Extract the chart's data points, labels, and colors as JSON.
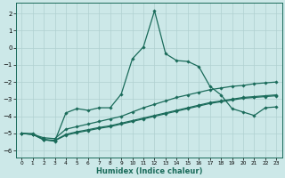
{
  "xlabel": "Humidex (Indice chaleur)",
  "background_color": "#cce8e8",
  "grid_color": "#b0d0d0",
  "line_color": "#1a6b5a",
  "xlim": [
    -0.5,
    23.5
  ],
  "ylim": [
    -6.4,
    2.6
  ],
  "yticks": [
    -6,
    -5,
    -4,
    -3,
    -2,
    -1,
    0,
    1,
    2
  ],
  "xticks": [
    0,
    1,
    2,
    3,
    4,
    5,
    6,
    7,
    8,
    9,
    10,
    11,
    12,
    13,
    14,
    15,
    16,
    17,
    18,
    19,
    20,
    21,
    22,
    23
  ],
  "line1_x": [
    0,
    1,
    2,
    3,
    4,
    5,
    6,
    7,
    8,
    9,
    10,
    11,
    12,
    13,
    14,
    15,
    16,
    17,
    18,
    19,
    20,
    21,
    22,
    23
  ],
  "line1_y": [
    -5.0,
    -5.0,
    -5.35,
    -5.45,
    -3.8,
    -3.55,
    -3.65,
    -3.5,
    -3.5,
    -2.7,
    -0.65,
    0.05,
    2.15,
    -0.35,
    -0.75,
    -0.8,
    -1.1,
    -2.25,
    -2.75,
    -3.55,
    -3.75,
    -3.95,
    -3.5,
    -3.45
  ],
  "line2_x": [
    0,
    1,
    2,
    3,
    4,
    5,
    6,
    7,
    8,
    9,
    10,
    11,
    12,
    13,
    14,
    15,
    16,
    17,
    18,
    19,
    20,
    21,
    22,
    23
  ],
  "line2_y": [
    -5.0,
    -5.05,
    -5.25,
    -5.3,
    -4.75,
    -4.6,
    -4.45,
    -4.3,
    -4.15,
    -4.0,
    -3.75,
    -3.5,
    -3.3,
    -3.1,
    -2.9,
    -2.75,
    -2.6,
    -2.45,
    -2.35,
    -2.25,
    -2.2,
    -2.1,
    -2.05,
    -2.0
  ],
  "line3_x": [
    0,
    1,
    2,
    3,
    4,
    5,
    6,
    7,
    8,
    9,
    10,
    11,
    12,
    13,
    14,
    15,
    16,
    17,
    18,
    19,
    20,
    21,
    22,
    23
  ],
  "line3_y": [
    -5.0,
    -5.05,
    -5.35,
    -5.4,
    -5.05,
    -4.9,
    -4.78,
    -4.65,
    -4.55,
    -4.4,
    -4.25,
    -4.1,
    -3.95,
    -3.8,
    -3.65,
    -3.5,
    -3.35,
    -3.2,
    -3.1,
    -3.0,
    -2.9,
    -2.85,
    -2.8,
    -2.75
  ],
  "line4_x": [
    0,
    1,
    2,
    3,
    4,
    5,
    6,
    7,
    8,
    9,
    10,
    11,
    12,
    13,
    14,
    15,
    16,
    17,
    18,
    19,
    20,
    21,
    22,
    23
  ],
  "line4_y": [
    -5.0,
    -5.05,
    -5.38,
    -5.42,
    -5.1,
    -4.95,
    -4.83,
    -4.7,
    -4.6,
    -4.45,
    -4.3,
    -4.15,
    -4.0,
    -3.85,
    -3.7,
    -3.55,
    -3.4,
    -3.25,
    -3.15,
    -3.05,
    -2.95,
    -2.9,
    -2.85,
    -2.8
  ]
}
